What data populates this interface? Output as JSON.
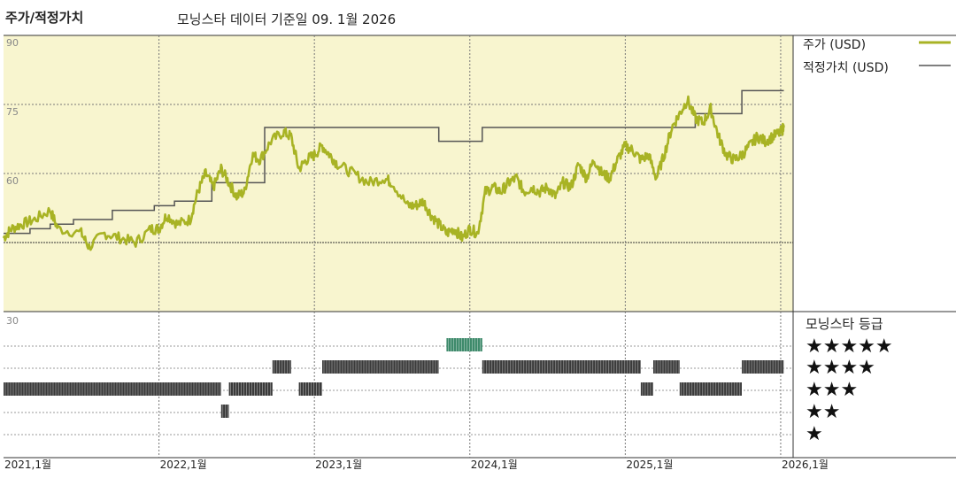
{
  "title": "주가/적정가치",
  "subtitle": "모닝스타 데이터 기준일 09. 1월 2026",
  "legend": {
    "price_label": "주가 (USD)",
    "fair_value_label": "적정가치 (USD)",
    "price_color": "#a8b324",
    "fair_value_color": "#555555"
  },
  "rating_panel": {
    "title": "모닝스타 등급",
    "rows": [
      "★★★★★",
      "★★★★",
      "★★★",
      "★★",
      "★"
    ],
    "bar_color": "#3a3a3a",
    "five_star_color": "#3e8a6b"
  },
  "colors": {
    "upper_bg": "#f8f5cf",
    "grid": "#555555"
  },
  "chart_data": [
    {
      "type": "line",
      "x_ticks": [
        "2021,1월",
        "2022,1월",
        "2023,1월",
        "2024,1월",
        "2025,1월",
        "2026,1월"
      ],
      "y_ticks": [
        90,
        75,
        60
      ],
      "extra_y_gridline": 45,
      "ylim": [
        30,
        90
      ],
      "xlim": [
        2021.0,
        2026.08
      ],
      "series": [
        {
          "name": "주가 (USD)",
          "points": [
            [
              2021.0,
              46
            ],
            [
              2021.05,
              48
            ],
            [
              2021.12,
              49
            ],
            [
              2021.2,
              50
            ],
            [
              2021.3,
              52
            ],
            [
              2021.35,
              48
            ],
            [
              2021.5,
              47
            ],
            [
              2021.55,
              44
            ],
            [
              2021.65,
              47
            ],
            [
              2021.75,
              46
            ],
            [
              2021.85,
              45
            ],
            [
              2021.95,
              48
            ],
            [
              2022.0,
              48
            ],
            [
              2022.05,
              51
            ],
            [
              2022.12,
              49
            ],
            [
              2022.2,
              50
            ],
            [
              2022.25,
              56
            ],
            [
              2022.3,
              60
            ],
            [
              2022.35,
              57
            ],
            [
              2022.4,
              61
            ],
            [
              2022.45,
              58
            ],
            [
              2022.5,
              55
            ],
            [
              2022.55,
              56
            ],
            [
              2022.6,
              64
            ],
            [
              2022.65,
              63
            ],
            [
              2022.72,
              67
            ],
            [
              2022.8,
              69
            ],
            [
              2022.85,
              68
            ],
            [
              2022.9,
              61
            ],
            [
              2022.95,
              63
            ],
            [
              2023.0,
              64
            ],
            [
              2023.05,
              66
            ],
            [
              2023.1,
              64
            ],
            [
              2023.15,
              62
            ],
            [
              2023.25,
              60
            ],
            [
              2023.35,
              58
            ],
            [
              2023.45,
              59
            ],
            [
              2023.5,
              58
            ],
            [
              2023.6,
              53
            ],
            [
              2023.65,
              53
            ],
            [
              2023.7,
              54
            ],
            [
              2023.75,
              51
            ],
            [
              2023.8,
              49
            ],
            [
              2023.85,
              47
            ],
            [
              2023.9,
              48
            ],
            [
              2023.95,
              46
            ],
            [
              2024.0,
              48
            ],
            [
              2024.05,
              47
            ],
            [
              2024.1,
              56
            ],
            [
              2024.15,
              57
            ],
            [
              2024.2,
              56
            ],
            [
              2024.25,
              58
            ],
            [
              2024.3,
              59
            ],
            [
              2024.35,
              56
            ],
            [
              2024.4,
              57
            ],
            [
              2024.45,
              56
            ],
            [
              2024.5,
              57
            ],
            [
              2024.55,
              55
            ],
            [
              2024.6,
              58
            ],
            [
              2024.65,
              57
            ],
            [
              2024.7,
              62
            ],
            [
              2024.75,
              59
            ],
            [
              2024.8,
              63
            ],
            [
              2024.85,
              60
            ],
            [
              2024.9,
              59
            ],
            [
              2024.95,
              63
            ],
            [
              2025.0,
              66
            ],
            [
              2025.05,
              65
            ],
            [
              2025.1,
              63
            ],
            [
              2025.15,
              64
            ],
            [
              2025.2,
              59
            ],
            [
              2025.25,
              64
            ],
            [
              2025.3,
              70
            ],
            [
              2025.35,
              73
            ],
            [
              2025.4,
              76
            ],
            [
              2025.45,
              72
            ],
            [
              2025.5,
              71
            ],
            [
              2025.55,
              74
            ],
            [
              2025.6,
              68
            ],
            [
              2025.65,
              64
            ],
            [
              2025.7,
              63
            ],
            [
              2025.75,
              64
            ],
            [
              2025.8,
              66
            ],
            [
              2025.85,
              68
            ],
            [
              2025.9,
              67
            ],
            [
              2025.95,
              68
            ],
            [
              2026.0,
              69
            ],
            [
              2026.02,
              70
            ]
          ]
        },
        {
          "name": "적정가치 (USD)",
          "steps": [
            [
              2021.0,
              47
            ],
            [
              2021.17,
              47
            ],
            [
              2021.17,
              48
            ],
            [
              2021.3,
              48
            ],
            [
              2021.3,
              49
            ],
            [
              2021.45,
              49
            ],
            [
              2021.45,
              50
            ],
            [
              2021.7,
              50
            ],
            [
              2021.7,
              52
            ],
            [
              2021.97,
              52
            ],
            [
              2021.97,
              53
            ],
            [
              2022.1,
              53
            ],
            [
              2022.1,
              54
            ],
            [
              2022.34,
              54
            ],
            [
              2022.34,
              58
            ],
            [
              2022.68,
              58
            ],
            [
              2022.68,
              70
            ],
            [
              2023.8,
              70
            ],
            [
              2023.8,
              67
            ],
            [
              2024.08,
              67
            ],
            [
              2024.08,
              70
            ],
            [
              2025.45,
              70
            ],
            [
              2025.45,
              73
            ],
            [
              2025.75,
              73
            ],
            [
              2025.75,
              78
            ],
            [
              2026.02,
              78
            ]
          ]
        }
      ]
    },
    {
      "type": "timeline",
      "rows": [
        5,
        4,
        3,
        2,
        1
      ],
      "segments": [
        {
          "rating": 3,
          "start": 2021.0,
          "end": 2022.4
        },
        {
          "rating": 2,
          "start": 2022.4,
          "end": 2022.45
        },
        {
          "rating": 3,
          "start": 2022.45,
          "end": 2022.73
        },
        {
          "rating": 4,
          "start": 2022.73,
          "end": 2022.85
        },
        {
          "rating": 3,
          "start": 2022.9,
          "end": 2023.05
        },
        {
          "rating": 4,
          "start": 2023.05,
          "end": 2023.8
        },
        {
          "rating": 5,
          "start": 2023.85,
          "end": 2024.08
        },
        {
          "rating": 4,
          "start": 2024.08,
          "end": 2025.1
        },
        {
          "rating": 3,
          "start": 2025.1,
          "end": 2025.18
        },
        {
          "rating": 4,
          "start": 2025.18,
          "end": 2025.35
        },
        {
          "rating": 3,
          "start": 2025.35,
          "end": 2025.75
        },
        {
          "rating": 4,
          "start": 2025.75,
          "end": 2026.02
        }
      ]
    }
  ]
}
